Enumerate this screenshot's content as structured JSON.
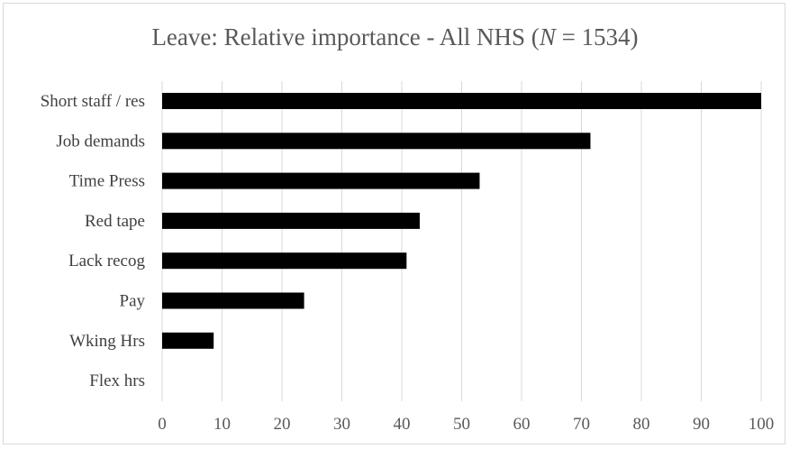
{
  "chart_data": {
    "type": "bar",
    "orientation": "horizontal",
    "title_prefix": "Leave: Relative importance - All NHS (",
    "title_n_symbol": "N",
    "title_suffix": " = 1534)",
    "categories": [
      "Short staff / res",
      "Job demands",
      "Time Press",
      "Red tape",
      "Lack recog",
      "Pay",
      "Wking Hrs",
      "Flex hrs"
    ],
    "values": [
      100,
      71.5,
      53,
      43,
      40.8,
      23.7,
      8.6,
      0
    ],
    "xlim": [
      0,
      100
    ],
    "xticks": [
      0,
      10,
      20,
      30,
      40,
      50,
      60,
      70,
      80,
      90,
      100
    ],
    "grid": "vertical",
    "legend": "none",
    "bar_color": "#000000",
    "grid_color": "#d9d9d9"
  }
}
